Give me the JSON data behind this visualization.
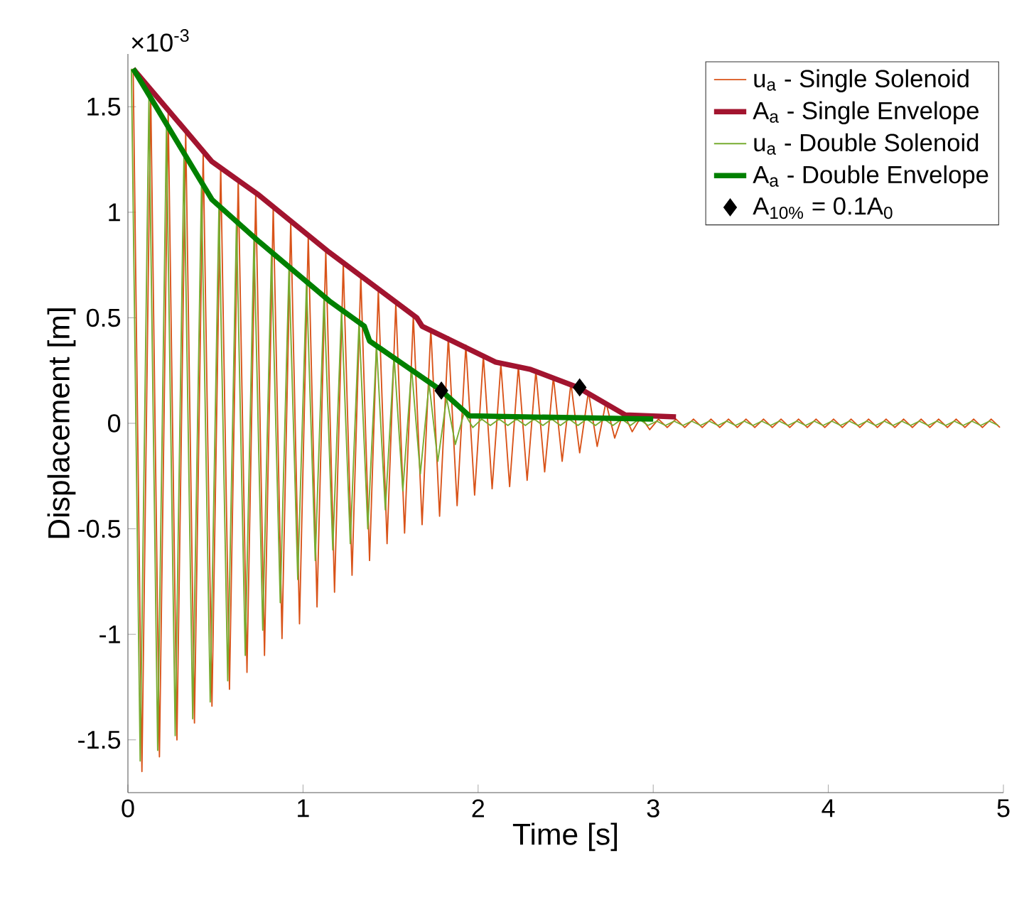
{
  "chart_data": {
    "type": "line",
    "xlabel": "Time [s]",
    "ylabel": "Displacement [m]",
    "xlim": [
      0,
      5
    ],
    "xticks": [
      0,
      1,
      2,
      3,
      4,
      5
    ],
    "ylim": [
      -1.75,
      1.75
    ],
    "yticks": [
      -1.5,
      -1,
      -0.5,
      0,
      0.5,
      1,
      1.5
    ],
    "annotations": [
      "×10$^{-3}$"
    ],
    "legend": "top right",
    "series": [
      {
        "name": "u$_{a}$ - Single Solenoid",
        "color": "#d95319",
        "x": [
          0.03,
          0.08,
          0.13,
          0.18,
          0.23,
          0.28,
          0.33,
          0.38,
          0.43,
          0.48,
          0.53,
          0.58,
          0.63,
          0.68,
          0.73,
          0.78,
          0.83,
          0.88,
          0.93,
          0.98,
          1.03,
          1.08,
          1.13,
          1.18,
          1.23,
          1.28,
          1.33,
          1.38,
          1.43,
          1.48,
          1.53,
          1.58,
          1.63,
          1.68,
          1.73,
          1.78,
          1.83,
          1.88,
          1.93,
          1.98,
          2.03,
          2.08,
          2.13,
          2.18,
          2.23,
          2.28,
          2.33,
          2.38,
          2.43,
          2.48,
          2.53,
          2.58,
          2.63,
          2.68,
          2.73,
          2.78,
          2.83,
          2.88,
          2.93,
          2.98,
          3.03,
          3.08,
          3.13,
          3.18,
          3.23,
          3.28,
          3.33,
          3.38,
          3.43,
          3.48,
          3.53,
          3.58,
          3.63,
          3.68,
          3.73,
          3.78,
          3.83,
          3.88,
          3.93,
          3.98,
          4.03,
          4.08,
          4.13,
          4.18,
          4.23,
          4.28,
          4.33,
          4.38,
          4.43,
          4.48,
          4.53,
          4.58,
          4.63,
          4.68,
          4.73,
          4.78,
          4.83,
          4.88,
          4.93,
          4.98
        ],
        "values": [
          1.68,
          -1.65,
          1.58,
          -1.58,
          1.48,
          -1.5,
          1.39,
          -1.42,
          1.29,
          -1.34,
          1.22,
          -1.26,
          1.16,
          -1.18,
          1.09,
          -1.1,
          1.03,
          -1.02,
          0.96,
          -0.95,
          0.89,
          -0.87,
          0.82,
          -0.8,
          0.76,
          -0.72,
          0.7,
          -0.65,
          0.63,
          -0.57,
          0.57,
          -0.52,
          0.51,
          -0.48,
          0.45,
          -0.44,
          0.41,
          -0.39,
          0.37,
          -0.34,
          0.32,
          -0.31,
          0.28,
          -0.3,
          0.27,
          -0.27,
          0.25,
          -0.23,
          0.22,
          -0.18,
          0.19,
          -0.14,
          0.15,
          -0.11,
          0.1,
          -0.07,
          0.05,
          -0.04,
          0.03,
          -0.03,
          0.02,
          -0.02,
          0.02,
          -0.02,
          0.02,
          -0.02,
          0.02,
          -0.02,
          0.02,
          -0.02,
          0.02,
          -0.02,
          0.02,
          -0.02,
          0.02,
          -0.02,
          0.02,
          -0.02,
          0.02,
          -0.02,
          0.02,
          -0.02,
          0.02,
          -0.02,
          0.02,
          -0.02,
          0.02,
          -0.02,
          0.02,
          -0.02,
          0.02,
          -0.02,
          0.02,
          -0.02,
          0.02,
          -0.02,
          0.02,
          -0.02,
          0.02,
          -0.02
        ]
      },
      {
        "name": "A$_{a}$ - Single Envelope",
        "color": "#a2142f",
        "x": [
          0.03,
          0.48,
          0.75,
          1.15,
          1.65,
          1.68,
          2.1,
          2.3,
          2.57,
          2.84,
          3.13
        ],
        "values": [
          1.68,
          1.24,
          1.08,
          0.81,
          0.5,
          0.46,
          0.29,
          0.255,
          0.17,
          0.04,
          0.03
        ]
      },
      {
        "name": "u$_{a}$ - Double Solenoid",
        "color": "#77ac30",
        "x": [
          0.02,
          0.07,
          0.12,
          0.17,
          0.22,
          0.27,
          0.32,
          0.37,
          0.42,
          0.47,
          0.52,
          0.57,
          0.62,
          0.67,
          0.72,
          0.77,
          0.82,
          0.87,
          0.92,
          0.97,
          1.02,
          1.07,
          1.12,
          1.17,
          1.22,
          1.27,
          1.32,
          1.37,
          1.42,
          1.47,
          1.52,
          1.57,
          1.62,
          1.67,
          1.72,
          1.77,
          1.82,
          1.87,
          1.92,
          1.97,
          2.02,
          2.07,
          2.12,
          2.17,
          2.22,
          2.27,
          2.32,
          2.37,
          2.42,
          2.47,
          2.52,
          2.57,
          2.62,
          2.67,
          2.72,
          2.77,
          2.82,
          2.87,
          2.92,
          2.97,
          3.02,
          3.07,
          3.12,
          3.17,
          3.22,
          3.27,
          3.32,
          3.37,
          3.42,
          3.47,
          3.52,
          3.57,
          3.62,
          3.67,
          3.72,
          3.77,
          3.82,
          3.87,
          3.92,
          3.97,
          4.02,
          4.07,
          4.12,
          4.17,
          4.22,
          4.27,
          4.32,
          4.37,
          4.42,
          4.47,
          4.52,
          4.57,
          4.62,
          4.67,
          4.72,
          4.77,
          4.82,
          4.87,
          4.92,
          4.97
        ],
        "values": [
          1.68,
          -1.6,
          1.54,
          -1.55,
          1.4,
          -1.48,
          1.26,
          -1.4,
          1.12,
          -1.32,
          1.03,
          -1.22,
          0.96,
          -1.1,
          0.88,
          -0.98,
          0.81,
          -0.85,
          0.74,
          -0.74,
          0.67,
          -0.65,
          0.6,
          -0.6,
          0.54,
          -0.57,
          0.48,
          -0.5,
          0.37,
          -0.41,
          0.32,
          -0.32,
          0.26,
          -0.24,
          0.19,
          -0.18,
          0.12,
          -0.1,
          0.05,
          -0.02,
          0.02,
          -0.01,
          0.02,
          -0.01,
          0.02,
          -0.01,
          0.02,
          -0.01,
          0.02,
          -0.01,
          0.02,
          -0.01,
          0.02,
          -0.01,
          0.02,
          -0.01,
          0.02,
          -0.01,
          0.02,
          -0.01,
          0.01,
          -0.01,
          0.01,
          -0.01,
          0.01,
          -0.01,
          0.01,
          -0.01,
          0.01,
          -0.01,
          0.01,
          -0.01,
          0.01,
          -0.01,
          0.01,
          -0.01,
          0.01,
          -0.01,
          0.01,
          -0.01,
          0.01,
          -0.01,
          0.01,
          -0.01,
          0.01,
          -0.01,
          0.01,
          -0.01,
          0.01,
          -0.01,
          0.01,
          -0.01,
          0.01,
          -0.01,
          0.01,
          -0.01,
          0.01,
          -0.01,
          0.01,
          -0.01
        ]
      },
      {
        "name": "A$_{a}$ - Double Envelope",
        "color": "#008000",
        "x": [
          0.03,
          0.48,
          0.75,
          1.15,
          1.35,
          1.38,
          1.79,
          1.95,
          3.0
        ],
        "values": [
          1.68,
          1.06,
          0.86,
          0.58,
          0.46,
          0.39,
          0.155,
          0.035,
          0.02
        ]
      },
      {
        "name": "A$_{10%}$ = 0.1A$_{0}$",
        "color": "#000000",
        "type": "scatter",
        "marker": "diamond",
        "x": [
          1.79,
          2.58
        ],
        "values": [
          0.155,
          0.17
        ]
      }
    ]
  }
}
